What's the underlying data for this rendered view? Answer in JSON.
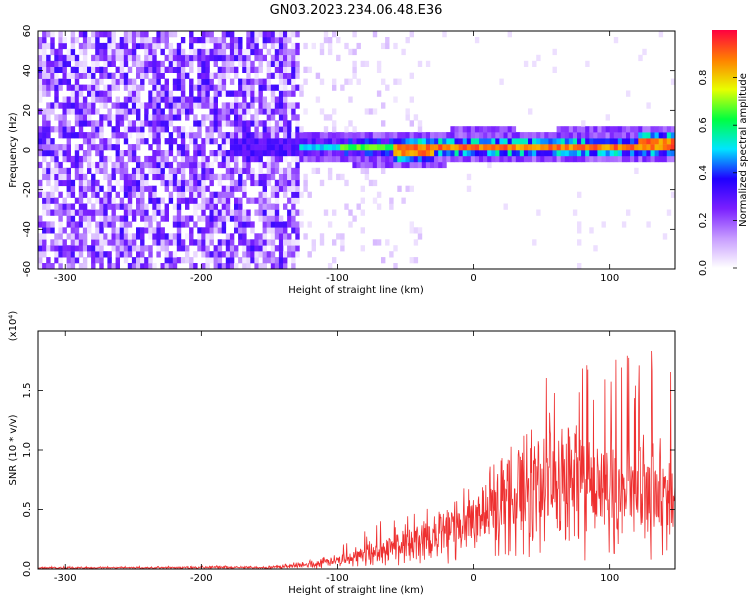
{
  "figure": {
    "title": "GN03.2023.234.06.48.E36"
  },
  "chart_data": [
    {
      "type": "heatmap",
      "title": "",
      "xlabel": "Height of straight line (km)",
      "ylabel": "Frequency (Hz)",
      "xlim": [
        -320,
        148
      ],
      "ylim": [
        -60,
        60
      ],
      "xticks": [
        -300,
        -200,
        -100,
        0,
        100
      ],
      "yticks": [
        60,
        40,
        20,
        0,
        -20,
        -40,
        -60
      ],
      "colorbar": {
        "label": "Normalized spectral amplitude",
        "range": [
          0,
          1
        ],
        "ticks": [
          "0.0",
          "0.2",
          "0.4",
          "0.6",
          "0.8"
        ],
        "colormap": [
          "#ffffff",
          "#c79cff",
          "#7a1fff",
          "#1f00ff",
          "#00e5ff",
          "#00ff40",
          "#e8ff00",
          "#ff8000",
          "#ff0040"
        ]
      },
      "ridge": {
        "x": [
          -180,
          -150,
          -120,
          -90,
          -60,
          -40,
          -20,
          0,
          30,
          60,
          90,
          120,
          148
        ],
        "y": [
          0,
          0,
          0,
          0,
          -1,
          -2,
          0,
          1,
          0,
          0,
          1,
          1,
          2
        ]
      }
    },
    {
      "type": "line",
      "title": "",
      "xlabel": "Height of straight line (km)",
      "ylabel": "SNR (10 * v/v)",
      "yscale_note": "(x10⁴)",
      "xlim": [
        -320,
        148
      ],
      "ylim": [
        0,
        2.0
      ],
      "xticks": [
        -300,
        -200,
        -100,
        0,
        100
      ],
      "yticks": [
        "0.0",
        "0.5",
        "1.0",
        "1.5"
      ],
      "series": [
        {
          "color": "#ee3030",
          "envelope": {
            "x": [
              -320,
              -150,
              -120,
              -100,
              -80,
              -60,
              -40,
              -20,
              0,
              20,
              40,
              60,
              80,
              100,
              120,
              148
            ],
            "max": [
              0.02,
              0.03,
              0.08,
              0.2,
              0.35,
              0.45,
              0.5,
              0.65,
              0.8,
              1.05,
              1.5,
              1.8,
              1.75,
              1.8,
              1.9,
              1.85
            ],
            "mean": [
              0.01,
              0.015,
              0.04,
              0.08,
              0.14,
              0.2,
              0.25,
              0.35,
              0.45,
              0.6,
              0.75,
              0.8,
              0.75,
              0.7,
              0.7,
              0.65
            ]
          }
        }
      ]
    }
  ]
}
